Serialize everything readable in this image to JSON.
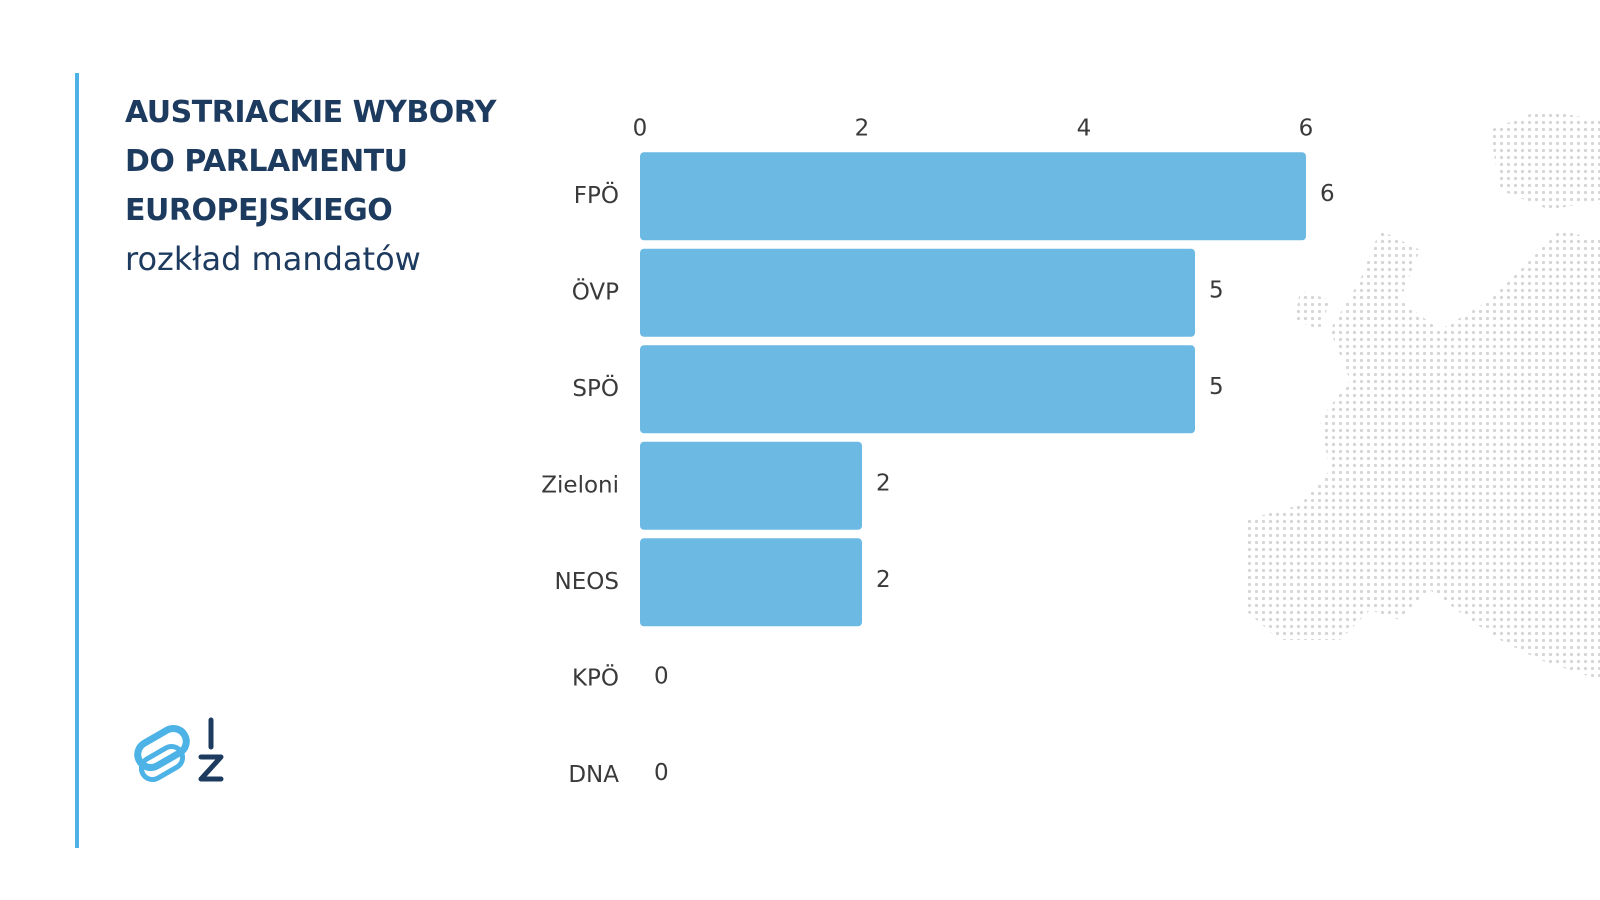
{
  "chart_data": {
    "type": "bar",
    "orientation": "horizontal",
    "title": "AUSTRIACKIE WYBORY DO PARLAMENTU EUROPEJSKIEGO",
    "subtitle": "rozkład mandatów",
    "categories": [
      "FPÖ",
      "ÖVP",
      "SPÖ",
      "Zieloni",
      "NEOS",
      "KPÖ",
      "DNA"
    ],
    "values": [
      6,
      5,
      5,
      2,
      2,
      0,
      0
    ],
    "color": "#6cb9e3",
    "xlim": [
      0,
      6
    ],
    "xticks": [
      0,
      2,
      4,
      6
    ],
    "grid": false
  }
}
